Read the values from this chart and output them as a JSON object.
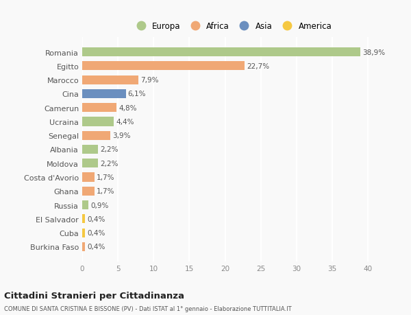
{
  "categories": [
    "Romania",
    "Egitto",
    "Marocco",
    "Cina",
    "Camerun",
    "Ucraina",
    "Senegal",
    "Albania",
    "Moldova",
    "Costa d'Avorio",
    "Ghana",
    "Russia",
    "El Salvador",
    "Cuba",
    "Burkina Faso"
  ],
  "values": [
    38.9,
    22.7,
    7.9,
    6.1,
    4.8,
    4.4,
    3.9,
    2.2,
    2.2,
    1.7,
    1.7,
    0.9,
    0.4,
    0.4,
    0.4
  ],
  "labels": [
    "38,9%",
    "22,7%",
    "7,9%",
    "6,1%",
    "4,8%",
    "4,4%",
    "3,9%",
    "2,2%",
    "2,2%",
    "1,7%",
    "1,7%",
    "0,9%",
    "0,4%",
    "0,4%",
    "0,4%"
  ],
  "colors": [
    "#aec98a",
    "#f0a875",
    "#f0a875",
    "#6b8fbf",
    "#f0a875",
    "#aec98a",
    "#f0a875",
    "#aec98a",
    "#aec98a",
    "#f0a875",
    "#f0a875",
    "#aec98a",
    "#f5c842",
    "#f5c842",
    "#f0a875"
  ],
  "legend_labels": [
    "Europa",
    "Africa",
    "Asia",
    "America"
  ],
  "legend_colors": [
    "#aec98a",
    "#f0a875",
    "#6b8fbf",
    "#f5c842"
  ],
  "title": "Cittadini Stranieri per Cittadinanza",
  "subtitle": "COMUNE DI SANTA CRISTINA E BISSONE (PV) - Dati ISTAT al 1° gennaio - Elaborazione TUTTITALIA.IT",
  "xlim": [
    0,
    42
  ],
  "xticks": [
    0,
    5,
    10,
    15,
    20,
    25,
    30,
    35,
    40
  ],
  "background_color": "#f9f9f9",
  "grid_color": "#ffffff",
  "bar_height": 0.65
}
